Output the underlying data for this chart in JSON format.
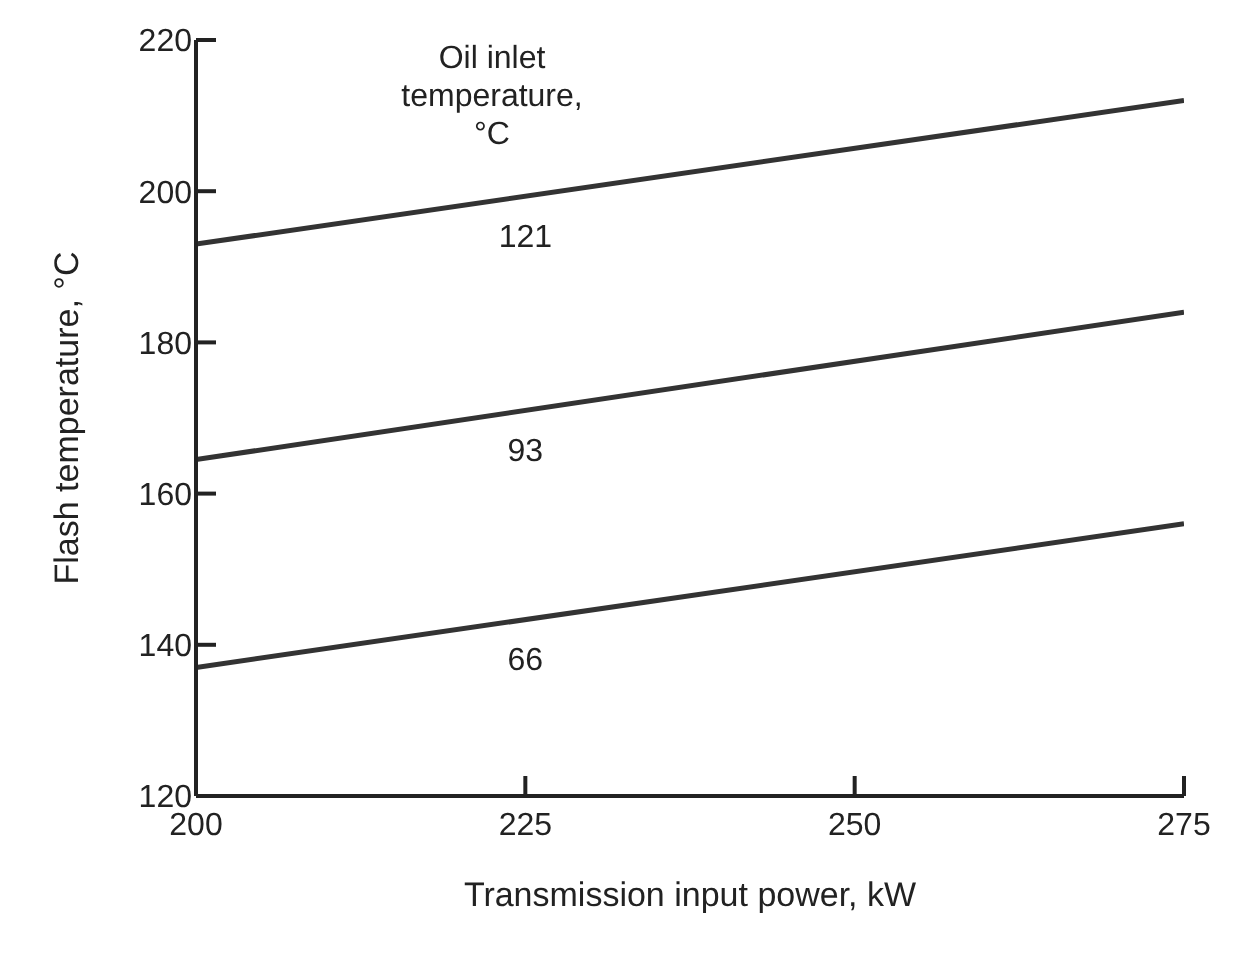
{
  "chart_data": {
    "type": "line",
    "xlabel": "Transmission input power, kW",
    "ylabel": "Flash temperature, °C",
    "legend_title": "Oil inlet temperature, °C",
    "x": [
      200,
      275
    ],
    "series": [
      {
        "name": "121",
        "color": "#333333",
        "values": [
          193,
          212
        ]
      },
      {
        "name": "93",
        "color": "#333333",
        "values": [
          164.5,
          184
        ]
      },
      {
        "name": "66",
        "color": "#333333",
        "values": [
          137,
          156
        ]
      }
    ],
    "xlim": [
      200,
      275
    ],
    "xticks": [
      200,
      225,
      250,
      275
    ],
    "ylim": [
      120,
      220
    ],
    "yticks": [
      120,
      140,
      160,
      180,
      200,
      220
    ],
    "marker": "none",
    "line_style": "solid"
  }
}
